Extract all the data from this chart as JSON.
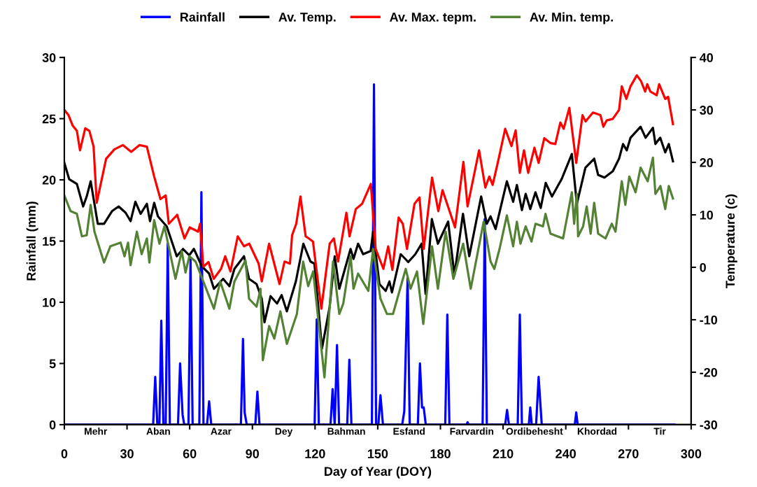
{
  "chart_data": {
    "type": "line",
    "xlabel": "Day of Year (DOY)",
    "ylabel": "Rainfall (mm)",
    "y2label": "Temperature (c)",
    "xlim": [
      0,
      300
    ],
    "xticks": [
      0,
      30,
      60,
      90,
      120,
      150,
      180,
      210,
      240,
      270,
      300
    ],
    "ylim": [
      0,
      30
    ],
    "yticks": [
      0,
      5,
      10,
      15,
      20,
      25,
      30
    ],
    "y2lim": [
      -30,
      40
    ],
    "y2ticks": [
      -30,
      -20,
      -10,
      0,
      10,
      20,
      30,
      40
    ],
    "legend": "top",
    "grid": false,
    "marker": "none",
    "line_style": "solid",
    "annotations": [
      {
        "text": "Mehr",
        "x": 15,
        "y": 0
      },
      {
        "text": "Aban",
        "x": 45,
        "y": 0
      },
      {
        "text": "Azar",
        "x": 75,
        "y": 0
      },
      {
        "text": "Dey",
        "x": 105,
        "y": 0
      },
      {
        "text": "Bahman",
        "x": 135,
        "y": 0
      },
      {
        "text": "Esfand",
        "x": 165,
        "y": 0
      },
      {
        "text": "Farvardin",
        "x": 195,
        "y": 0
      },
      {
        "text": "Ordibehesht",
        "x": 225,
        "y": 0
      },
      {
        "text": "Khordad",
        "x": 255,
        "y": 0
      },
      {
        "text": "Tir",
        "x": 285,
        "y": 0
      }
    ],
    "series": [
      {
        "name": "Rainfall",
        "color": "#0000ff",
        "axis": "y",
        "x": [
          0,
          42.5,
          43.5,
          44.5,
          45.5,
          46.4,
          47.4,
          48.5,
          49.5,
          50.5,
          54.4,
          55.4,
          56.6,
          57.4,
          59.4,
          60.4,
          61.4,
          64.6,
          65.6,
          66.6,
          68.3,
          69.3,
          70.3,
          84.5,
          85.5,
          86.3,
          87.3,
          91.4,
          92.4,
          93.4,
          119.8,
          120.8,
          121.8,
          127.4,
          128.4,
          129.4,
          130.5,
          131.5,
          135.4,
          136.4,
          137.4,
          147.2,
          148.2,
          149.2,
          150.3,
          151.3,
          152.5,
          161.7,
          162.7,
          164.3,
          165.3,
          169.2,
          170.2,
          171.2,
          172,
          173,
          182.3,
          183.3,
          184.3,
          192.5,
          193,
          193.5,
          200.2,
          201.2,
          202.2,
          211,
          211.9,
          212.8,
          217,
          218,
          219,
          222.3,
          223,
          223.7,
          225.8,
          227,
          228.5,
          244.3,
          245,
          245.7,
          292
        ],
        "values": [
          0,
          0,
          3.9,
          0,
          0,
          8.5,
          0,
          0,
          14.8,
          0,
          0,
          5.0,
          0.8,
          0,
          0,
          13.5,
          0,
          0,
          19.0,
          0,
          0,
          1.9,
          0,
          0,
          7.0,
          1.0,
          0,
          0,
          2.7,
          0,
          0,
          8.6,
          0,
          0,
          2.9,
          0,
          6.5,
          0,
          0,
          5.3,
          0,
          0,
          27.8,
          0,
          0,
          2.4,
          0,
          0,
          1.1,
          12.0,
          0,
          0,
          5.0,
          1.4,
          1.4,
          0,
          0,
          9.0,
          0,
          0,
          0.2,
          0,
          0,
          16.8,
          0,
          0,
          1.2,
          0,
          0,
          9.0,
          0,
          0,
          1.4,
          0,
          0,
          3.9,
          0,
          0,
          1.0,
          0,
          0
        ]
      },
      {
        "name": "Av. Temp.",
        "color": "#000000",
        "axis": "y2",
        "x": [
          0,
          2.3,
          6,
          9,
          10.7,
          12.6,
          16,
          19,
          22.8,
          26,
          29.3,
          31.7,
          34,
          36.5,
          39.5,
          41,
          43,
          44.8,
          49,
          53.8,
          56.8,
          59.8,
          62,
          65.8,
          69.3,
          71.6,
          76,
          79,
          81.4,
          86,
          88.4,
          92,
          94.5,
          95.8,
          98.7,
          101.8,
          104,
          106.5,
          110.8,
          114.4,
          117.8,
          119.7,
          123.3,
          127,
          129.4,
          131.6,
          137,
          138.4,
          140.6,
          143,
          146.6,
          147.8,
          150.8,
          153.8,
          155.6,
          156.8,
          161,
          164.6,
          168,
          171,
          172.9,
          175.9,
          178.8,
          183.7,
          186.7,
          190.8,
          193.8,
          199.5,
          202.2,
          204,
          206.4,
          211.8,
          214.8,
          216.6,
          219,
          220.8,
          223,
          225.5,
          228,
          230.4,
          233.4,
          238,
          242.9,
          245.3,
          249.4,
          253.6,
          255.5,
          258.5,
          262.5,
          265.5,
          267.4,
          269.2,
          271,
          275.8,
          278.2,
          281.7,
          282.9,
          285.2,
          287.6,
          289.3,
          291.3
        ],
        "values": [
          19.9,
          16.8,
          15.9,
          11.6,
          13.5,
          16.4,
          8.3,
          8.3,
          10.7,
          11.6,
          10.4,
          8.8,
          12.5,
          10.2,
          12.1,
          8.8,
          12.3,
          9.7,
          7.8,
          2.1,
          3.5,
          2.3,
          3.5,
          0.2,
          -1.2,
          -4.1,
          -2.2,
          -3.6,
          -0.3,
          2.1,
          -2.2,
          -3.2,
          -6.0,
          -10.5,
          -5.5,
          -6.9,
          -5.3,
          -8.4,
          -2.7,
          4.5,
          1.1,
          0.7,
          -15.5,
          -7.5,
          2.1,
          -4.1,
          3.5,
          1.6,
          4.5,
          2.5,
          3.1,
          6.8,
          -3.2,
          -4.5,
          -2.7,
          -4.8,
          2.5,
          1.0,
          2.5,
          4.5,
          -5.1,
          9.2,
          4.5,
          8.7,
          -1.5,
          10.2,
          2.1,
          13.5,
          8.3,
          9.7,
          7.3,
          16.4,
          12.5,
          15.7,
          10.9,
          14.0,
          11.1,
          14.3,
          11.3,
          16.1,
          13.5,
          16.8,
          21.6,
          12.1,
          19.0,
          20.7,
          17.6,
          17.1,
          18.3,
          20.7,
          23.5,
          22.3,
          24.7,
          26.8,
          24.7,
          26.6,
          23.5,
          24.7,
          21.9,
          23.5,
          20.2
        ]
      },
      {
        "name": "Av. Max. tepm.",
        "color": "#ff0000",
        "axis": "y2",
        "x": [
          0,
          2,
          4,
          6,
          7.5,
          10,
          12,
          14,
          15.5,
          20,
          24,
          28,
          32,
          36,
          39.5,
          43,
          46,
          48.5,
          50,
          54,
          57.5,
          60,
          64,
          65,
          66.5,
          69,
          71.5,
          75,
          77,
          79.5,
          83,
          86,
          88.5,
          93,
          94.5,
          98,
          103,
          105.4,
          108,
          109,
          111,
          113,
          115.5,
          117,
          119,
          123,
          127,
          129,
          131,
          135,
          136.5,
          139.5,
          142.5,
          146.7,
          149,
          152.7,
          155,
          157,
          160,
          162,
          164,
          167.6,
          170,
          172,
          176,
          179,
          181,
          187,
          191,
          193,
          198.5,
          201.5,
          203.4,
          205,
          207.6,
          211,
          214,
          216,
          218,
          220,
          222,
          225,
          227,
          229.7,
          232.6,
          235,
          237.4,
          239,
          241.7,
          245,
          248,
          249.5,
          253,
          256.6,
          258,
          259.6,
          262.5,
          265.5,
          266.8,
          269,
          271,
          274,
          276,
          278,
          279,
          280.5,
          283.5,
          284.7,
          287.6,
          289,
          291.3
        ],
        "values": [
          30.0,
          29.0,
          27.0,
          26.0,
          22.3,
          26.5,
          26.0,
          23.0,
          12.3,
          20.7,
          22.5,
          23.3,
          22.0,
          23.3,
          23.0,
          17.3,
          13.0,
          13.7,
          8.3,
          10.0,
          5.5,
          7.6,
          6.8,
          8.3,
          0.1,
          1.0,
          -2.2,
          -0.3,
          2.1,
          -0.8,
          5.9,
          4.0,
          4.5,
          0.7,
          -2.7,
          4.5,
          -3.2,
          1.1,
          0.7,
          6.1,
          8.3,
          13.5,
          5.9,
          5.5,
          4.9,
          -7.9,
          4.5,
          5.5,
          1.1,
          10.4,
          5.9,
          11.1,
          12.1,
          15.9,
          3.5,
          -0.3,
          4.0,
          -0.5,
          9.5,
          8.3,
          3.5,
          12.1,
          13.3,
          3.5,
          17.1,
          10.7,
          14.7,
          7.6,
          20.1,
          11.6,
          22.3,
          15.2,
          17.3,
          15.7,
          20.2,
          26.4,
          23.1,
          26.1,
          18.0,
          22.3,
          18.0,
          22.8,
          19.9,
          24.6,
          23.7,
          23.5,
          27.6,
          26.4,
          30.4,
          19.9,
          29.0,
          27.8,
          29.5,
          29.0,
          26.8,
          28.0,
          28.3,
          30.0,
          34.5,
          32.1,
          34.5,
          36.6,
          35.5,
          33.5,
          34.9,
          33.5,
          32.8,
          34.9,
          32.1,
          32.5,
          27.3
        ]
      },
      {
        "name": "Av. Min. temp.",
        "color": "#548235",
        "axis": "y2",
        "x": [
          0,
          3,
          6,
          8.4,
          10.7,
          12.6,
          14.4,
          19,
          22,
          26.9,
          28.8,
          30.5,
          31.7,
          34.7,
          37,
          39.5,
          40.7,
          43,
          45.5,
          47.9,
          53.2,
          56.2,
          58,
          59.8,
          62.8,
          67,
          71.6,
          74.6,
          79,
          81.4,
          86.7,
          88.4,
          92,
          93.9,
          95,
          98,
          100.5,
          103.4,
          106.5,
          111.3,
          114.3,
          116.7,
          119.1,
          124.5,
          128.6,
          131.6,
          133.5,
          137,
          138.4,
          140.6,
          145.5,
          147.8,
          151.3,
          154.4,
          157.3,
          163.4,
          165.7,
          168.8,
          171.8,
          176,
          178.8,
          182.5,
          186.2,
          190.9,
          194.5,
          200.7,
          204,
          205.8,
          208.3,
          211.8,
          214.8,
          216.6,
          218.3,
          220.8,
          223.6,
          225.5,
          229.1,
          230.3,
          232.7,
          238.7,
          242.9,
          244,
          245.3,
          245.9,
          248.3,
          250,
          251.9,
          253.6,
          255.5,
          259,
          262,
          263.8,
          266.8,
          268.5,
          270.4,
          273.4,
          275.8,
          279.2,
          281.7,
          282.9,
          285.3,
          287.6,
          289.3,
          291.3
        ],
        "values": [
          13.7,
          10.7,
          10.2,
          5.9,
          6.1,
          11.9,
          6.8,
          0.9,
          4.0,
          4.7,
          2.1,
          4.7,
          0.4,
          6.8,
          2.5,
          5.5,
          0.9,
          9.0,
          4.5,
          7.8,
          -2.2,
          3.1,
          -1.0,
          2.1,
          1.1,
          -3.2,
          -7.9,
          -2.7,
          -7.9,
          -2.7,
          1.3,
          -6.0,
          -7.5,
          -4.1,
          -17.7,
          -11.2,
          -13.6,
          -8.4,
          -14.6,
          -8.9,
          1.1,
          -3.6,
          -0.8,
          -21.0,
          1.1,
          -8.9,
          -6.9,
          2.1,
          -4.1,
          -1.2,
          -4.5,
          3.5,
          -6.0,
          -8.9,
          -8.9,
          -0.3,
          -4.1,
          -0.8,
          -10.8,
          4.0,
          -4.1,
          6.8,
          -2.2,
          4.5,
          -4.1,
          8.7,
          1.1,
          -0.3,
          3.5,
          9.9,
          4.0,
          8.7,
          4.5,
          7.8,
          4.9,
          8.3,
          7.8,
          10.2,
          6.4,
          5.5,
          14.3,
          8.3,
          14.0,
          5.9,
          7.8,
          11.6,
          6.4,
          12.3,
          6.4,
          5.5,
          8.3,
          6.8,
          16.4,
          11.9,
          17.3,
          14.3,
          19.0,
          16.4,
          20.9,
          14.0,
          15.5,
          11.1,
          15.5,
          13.1
        ]
      }
    ]
  }
}
